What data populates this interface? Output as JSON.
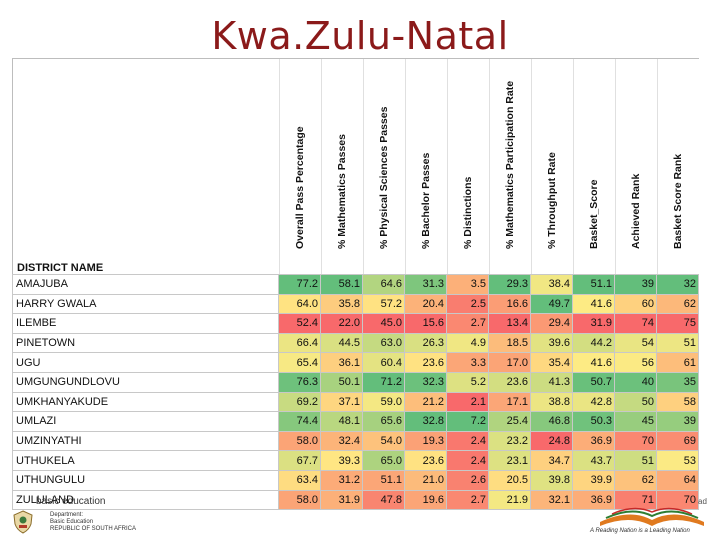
{
  "title": "Kwa.Zulu-Natal",
  "table": {
    "district_header": "DISTRICT NAME",
    "columns": [
      "Overall  Pass Percentage",
      "% Mathematics Passes",
      "% Physical Sciences Passes",
      "% Bachelor Passes",
      "% Distinctions",
      "% Mathematics Participation Rate",
      "% Throughput Rate",
      "Basket_Score",
      "Achieved Rank",
      "Basket Score Rank"
    ],
    "rows": [
      {
        "name": "AMAJUBA",
        "values": [
          "77.2",
          "58.1",
          "64.6",
          "31.3",
          "3.5",
          "29.3",
          "38.4",
          "51.1",
          "39",
          "32"
        ]
      },
      {
        "name": "HARRY GWALA",
        "values": [
          "64.0",
          "35.8",
          "57.2",
          "20.4",
          "2.5",
          "16.6",
          "49.7",
          "41.6",
          "60",
          "62"
        ]
      },
      {
        "name": "ILEMBE",
        "values": [
          "52.4",
          "22.0",
          "45.0",
          "15.6",
          "2.7",
          "13.4",
          "29.4",
          "31.9",
          "74",
          "75"
        ]
      },
      {
        "name": "PINETOWN",
        "values": [
          "66.4",
          "44.5",
          "63.0",
          "26.3",
          "4.9",
          "18.5",
          "39.6",
          "44.2",
          "54",
          "51"
        ]
      },
      {
        "name": "UGU",
        "values": [
          "65.4",
          "36.1",
          "60.4",
          "23.6",
          "3.3",
          "17.0",
          "35.4",
          "41.6",
          "56",
          "61"
        ]
      },
      {
        "name": "UMGUNGUNDLOVU",
        "values": [
          "76.3",
          "50.1",
          "71.2",
          "32.3",
          "5.2",
          "23.6",
          "41.3",
          "50.7",
          "40",
          "35"
        ]
      },
      {
        "name": "UMKHANYAKUDE",
        "values": [
          "69.2",
          "37.1",
          "59.0",
          "21.2",
          "2.1",
          "17.1",
          "38.8",
          "42.8",
          "50",
          "58"
        ]
      },
      {
        "name": "UMLAZI",
        "values": [
          "74.4",
          "48.1",
          "65.6",
          "32.8",
          "7.2",
          "25.4",
          "46.8",
          "50.3",
          "45",
          "39"
        ]
      },
      {
        "name": "UMZINYATHI",
        "values": [
          "58.0",
          "32.4",
          "54.0",
          "19.3",
          "2.4",
          "23.2",
          "24.8",
          "36.9",
          "70",
          "69"
        ]
      },
      {
        "name": "UTHUKELA",
        "values": [
          "67.7",
          "39.3",
          "65.0",
          "23.6",
          "2.4",
          "23.1",
          "34.7",
          "43.7",
          "51",
          "53"
        ]
      },
      {
        "name": "UTHUNGULU",
        "values": [
          "63.4",
          "31.2",
          "51.1",
          "21.0",
          "2.6",
          "20.5",
          "39.8",
          "39.9",
          "62",
          "64"
        ]
      },
      {
        "name": "ZULULAND",
        "values": [
          "58.0",
          "31.9",
          "47.8",
          "19.6",
          "2.7",
          "21.9",
          "32.1",
          "36.9",
          "71",
          "70"
        ]
      }
    ]
  },
  "footer": {
    "left_text": "basic education",
    "gov_lines": [
      "Department:",
      "Basic Education",
      "REPUBLIC OF SOUTH AFRICA"
    ],
    "slogan": "A Reading Nation is a Leading Nation",
    "page_fragment": "ad"
  },
  "colors": {
    "title": "#8b1a1a",
    "high": "#63be7b",
    "mid": "#ffeb84",
    "low": "#f8696b"
  }
}
